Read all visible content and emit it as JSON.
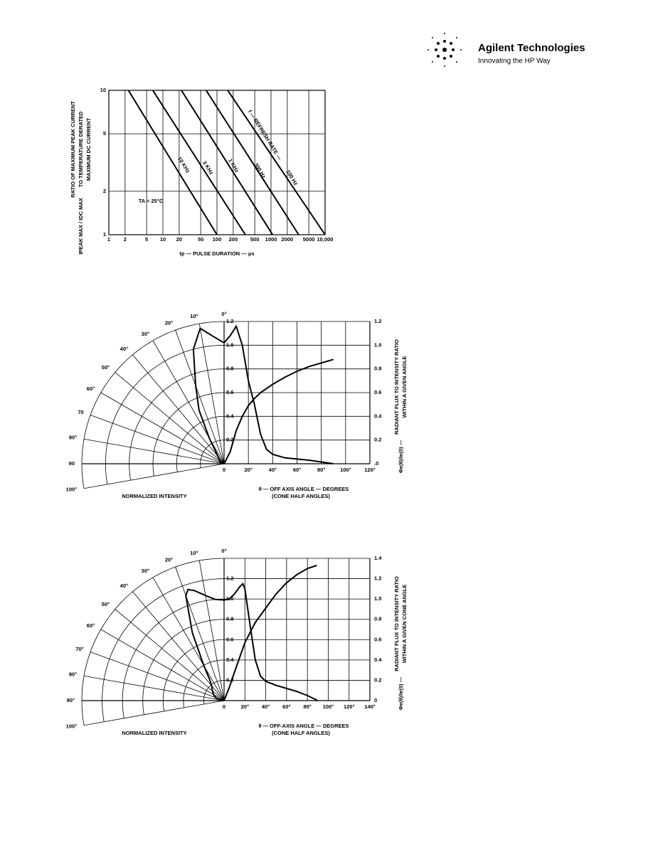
{
  "header": {
    "company": "Agilent Technologies",
    "tagline": "Innovating the HP Way"
  },
  "chart_data": [
    {
      "type": "line",
      "log_x": true,
      "log_y": true,
      "grid": true,
      "color": "#000000",
      "y_label_lines": [
        "RATIO OF MAXIMUM PEAK CURRENT",
        "TO TEMPERATURE DERATED",
        "MAXIMUM DC CURRENT"
      ],
      "y_label_symbol": "IPEAK MAX / IDC MAX",
      "x_label": "tp — PULSE DURATION — μs",
      "annotations": [
        "f — REFRESH RATE —",
        "TA = 25°C"
      ],
      "series": [
        {
          "name": "10 KHz",
          "x": [
            2.3,
            100
          ],
          "values": [
            10,
            1
          ]
        },
        {
          "name": "3 KHz",
          "x": [
            6.5,
            335
          ],
          "values": [
            10,
            1
          ]
        },
        {
          "name": "1 KHz",
          "x": [
            22,
            1070
          ],
          "values": [
            10,
            1
          ]
        },
        {
          "name": "300 Hz",
          "x": [
            63,
            3250
          ],
          "values": [
            10,
            1
          ]
        },
        {
          "name": "100 Hz",
          "x": [
            158,
            10000
          ],
          "values": [
            10,
            1
          ]
        }
      ],
      "xlim": [
        1,
        10000
      ],
      "ylim": [
        1,
        10
      ],
      "xticks": [
        1,
        2,
        5,
        10,
        20,
        50,
        100,
        200,
        500,
        1000,
        2000,
        5000,
        {
          "value": 10000,
          "label": "10,000"
        }
      ],
      "yticks": [
        1,
        2,
        5,
        10
      ]
    },
    {
      "type": "radiation",
      "grid": true,
      "color": "#000000",
      "polar_label": "NORMALIZED INTENSITY",
      "x_label": "θ — OFF AXIS ANGLE — DEGREES",
      "x_sublabel": "(CONE HALF ANGLES)",
      "y2_label_lines": [
        "RADIANT FLUX TO INTENSITY RATIO",
        "WITHIN A GIVEN ANGLE"
      ],
      "y2_symbol": "Φe(θ)/Ie(0) —",
      "angle_ticks": [
        {
          "value": 0,
          "label": "0°"
        },
        {
          "value": 10,
          "label": "10°"
        },
        {
          "value": 20,
          "label": "20°"
        },
        {
          "value": 30,
          "label": "30°"
        },
        {
          "value": 40,
          "label": "40°"
        },
        {
          "value": 50,
          "label": "50°"
        },
        {
          "value": 60,
          "label": "60°"
        },
        70,
        {
          "value": 80,
          "label": "80°"
        },
        90,
        {
          "value": 100,
          "label": "100°"
        }
      ],
      "rticks": [
        0.2,
        0.4,
        0.6,
        0.8,
        {
          "value": 1,
          "label": "1.0"
        },
        1.2
      ],
      "xlim": [
        0,
        120
      ],
      "xticks": [
        0,
        {
          "value": 20,
          "label": "20°"
        },
        {
          "value": 40,
          "label": "40°"
        },
        {
          "value": 60,
          "label": "60°"
        },
        {
          "value": 80,
          "label": "80°"
        },
        {
          "value": 100,
          "label": "100°"
        },
        {
          "value": 120,
          "label": "120°"
        }
      ],
      "y2lim": [
        0,
        1.2
      ],
      "y2ticks": [
        {
          "value": 0,
          "label": ".0"
        },
        0.2,
        0.4,
        0.6,
        0.8,
        {
          "value": 1,
          "label": "1.0"
        },
        1.2
      ],
      "series": [
        {
          "polar": true,
          "axis": "y2",
          "x": [
            0,
            5,
            10,
            15,
            20,
            25,
            30,
            35,
            40,
            50,
            60,
            70,
            90
          ],
          "values": [
            1.02,
            1.08,
            1.16,
            1.0,
            0.7,
            0.5,
            0.25,
            0.12,
            0.08,
            0.05,
            0.04,
            0.03,
            0
          ]
        },
        {
          "axis": "y2",
          "x": [
            0,
            5,
            10,
            15,
            20,
            25,
            30,
            40,
            50,
            60,
            70,
            80,
            90
          ],
          "values": [
            0,
            0.1,
            0.28,
            0.4,
            0.49,
            0.55,
            0.6,
            0.67,
            0.73,
            0.78,
            0.82,
            0.85,
            0.88
          ]
        }
      ]
    },
    {
      "type": "radiation",
      "grid": true,
      "color": "#000000",
      "polar_label": "NORMALIZED INTENSITY",
      "x_label": "θ — OFF-AXIS ANGLE — DEGREES",
      "x_sublabel": "(CONE HALF ANGLES)",
      "y2_label_lines": [
        "RADIANT FLUX TO INTENSITY RATIO",
        "WITHIN A GIVEN CONE ANGLE"
      ],
      "y2_symbol": "Φe(θ)/Ie(0) —",
      "angle_ticks": [
        {
          "value": 0,
          "label": "0°"
        },
        {
          "value": 10,
          "label": "10°"
        },
        {
          "value": 20,
          "label": "20°"
        },
        {
          "value": 30,
          "label": "30°"
        },
        {
          "value": 40,
          "label": "40°"
        },
        {
          "value": 50,
          "label": "50°"
        },
        {
          "value": 60,
          "label": "60°"
        },
        {
          "value": 70,
          "label": "70°"
        },
        {
          "value": 80,
          "label": "80°"
        },
        {
          "value": 90,
          "label": "90°"
        },
        {
          "value": 100,
          "label": "100°"
        }
      ],
      "rticks": [
        0.2,
        0.4,
        0.6,
        0.8,
        {
          "value": 1,
          "label": "1.0"
        },
        1.2
      ],
      "xlim": [
        0,
        140
      ],
      "xticks": [
        0,
        {
          "value": 20,
          "label": "20°"
        },
        {
          "value": 40,
          "label": "40°"
        },
        {
          "value": 60,
          "label": "60°"
        },
        {
          "value": 80,
          "label": "80°"
        },
        {
          "value": 100,
          "label": "100°"
        },
        {
          "value": 120,
          "label": "120°"
        },
        {
          "value": 140,
          "label": "140°"
        }
      ],
      "y2lim": [
        0,
        1.4
      ],
      "y2ticks": [
        0,
        0.2,
        0.4,
        0.6,
        0.8,
        {
          "value": 1,
          "label": "1.0"
        },
        1.2,
        1.4
      ],
      "series": [
        {
          "polar": true,
          "axis": "y2",
          "x": [
            0,
            5,
            10,
            15,
            18,
            20,
            25,
            30,
            35,
            40,
            50,
            60,
            70,
            80,
            90
          ],
          "values": [
            0.99,
            1.0,
            1.05,
            1.12,
            1.15,
            1.1,
            0.74,
            0.4,
            0.24,
            0.19,
            0.15,
            0.12,
            0.09,
            0.05,
            0
          ]
        },
        {
          "axis": "y2",
          "x": [
            0,
            5,
            10,
            20,
            30,
            40,
            50,
            60,
            70,
            80,
            89
          ],
          "values": [
            0,
            0.13,
            0.28,
            0.57,
            0.77,
            0.91,
            1.05,
            1.16,
            1.24,
            1.3,
            1.33
          ]
        }
      ]
    }
  ]
}
